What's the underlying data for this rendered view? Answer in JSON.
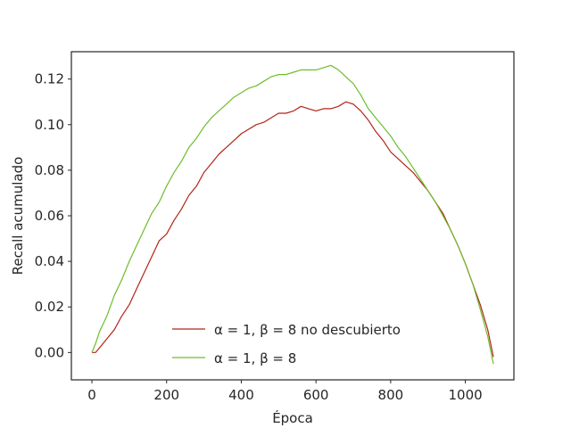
{
  "chart_data": {
    "type": "line",
    "title": "",
    "xlabel": "Época",
    "ylabel": "Recall acumulado",
    "xlim": [
      -55,
      1130
    ],
    "ylim": [
      -0.012,
      0.132
    ],
    "xticks": [
      0,
      200,
      400,
      600,
      800,
      1000
    ],
    "xtick_labels": [
      "0",
      "200",
      "400",
      "600",
      "800",
      "1000"
    ],
    "yticks": [
      0.0,
      0.02,
      0.04,
      0.06,
      0.08,
      0.1,
      0.12
    ],
    "ytick_labels": [
      "0.00",
      "0.02",
      "0.04",
      "0.06",
      "0.08",
      "0.10",
      "0.12"
    ],
    "grid": false,
    "legend_position": "lower-center",
    "series": [
      {
        "name": "α = 1, β = 8 no descubierto",
        "color": "#b22418",
        "x": [
          0,
          10,
          20,
          40,
          60,
          80,
          100,
          120,
          140,
          160,
          180,
          200,
          220,
          240,
          260,
          280,
          300,
          320,
          340,
          360,
          380,
          400,
          420,
          440,
          460,
          480,
          500,
          520,
          540,
          560,
          580,
          600,
          620,
          640,
          660,
          680,
          700,
          720,
          740,
          760,
          780,
          800,
          820,
          840,
          860,
          880,
          900,
          920,
          940,
          960,
          980,
          1000,
          1020,
          1040,
          1060,
          1075
        ],
        "y": [
          0.0,
          0.0,
          0.002,
          0.006,
          0.01,
          0.016,
          0.021,
          0.028,
          0.035,
          0.042,
          0.049,
          0.052,
          0.058,
          0.063,
          0.069,
          0.073,
          0.079,
          0.083,
          0.087,
          0.09,
          0.093,
          0.096,
          0.098,
          0.1,
          0.101,
          0.103,
          0.105,
          0.105,
          0.106,
          0.108,
          0.107,
          0.106,
          0.107,
          0.107,
          0.108,
          0.11,
          0.109,
          0.106,
          0.102,
          0.097,
          0.093,
          0.088,
          0.085,
          0.082,
          0.079,
          0.075,
          0.071,
          0.066,
          0.061,
          0.054,
          0.047,
          0.039,
          0.03,
          0.021,
          0.01,
          -0.002
        ]
      },
      {
        "name": "α = 1, β = 8",
        "color": "#6ebd2a",
        "x": [
          0,
          10,
          20,
          40,
          60,
          80,
          100,
          120,
          140,
          160,
          180,
          200,
          220,
          240,
          260,
          280,
          300,
          320,
          340,
          360,
          380,
          400,
          420,
          440,
          460,
          480,
          500,
          520,
          540,
          560,
          580,
          600,
          620,
          640,
          660,
          680,
          700,
          720,
          740,
          760,
          780,
          800,
          820,
          840,
          860,
          880,
          900,
          920,
          940,
          960,
          980,
          1000,
          1020,
          1040,
          1060,
          1075
        ],
        "y": [
          0.0,
          0.004,
          0.009,
          0.016,
          0.025,
          0.032,
          0.04,
          0.047,
          0.054,
          0.061,
          0.066,
          0.073,
          0.079,
          0.084,
          0.09,
          0.094,
          0.099,
          0.103,
          0.106,
          0.109,
          0.112,
          0.114,
          0.116,
          0.117,
          0.119,
          0.121,
          0.122,
          0.122,
          0.123,
          0.124,
          0.124,
          0.124,
          0.125,
          0.126,
          0.124,
          0.121,
          0.118,
          0.113,
          0.107,
          0.103,
          0.099,
          0.095,
          0.09,
          0.086,
          0.081,
          0.076,
          0.071,
          0.066,
          0.06,
          0.054,
          0.047,
          0.039,
          0.03,
          0.019,
          0.007,
          -0.005
        ]
      }
    ]
  }
}
